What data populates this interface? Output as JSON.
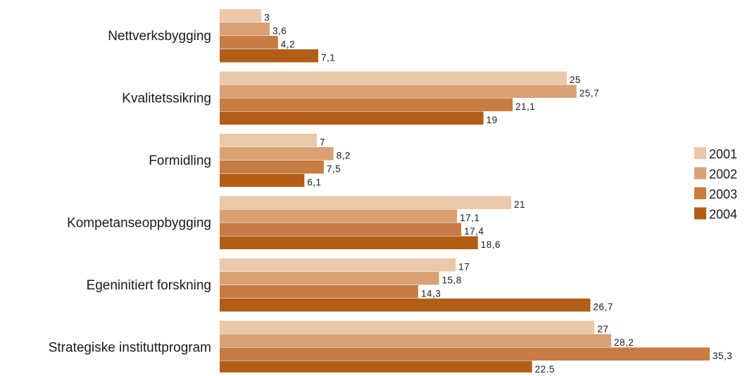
{
  "chart_data": {
    "type": "bar",
    "orientation": "horizontal",
    "categories": [
      "Nettverksbygging",
      "Kvalitetssikring",
      "Formidling",
      "Kompetanseoppbygging",
      "Egeninitiert forskning",
      "Strategiske instituttprogram"
    ],
    "series": [
      {
        "name": "2001",
        "color": "#EBC8A9",
        "values": [
          3,
          25,
          7,
          21,
          17,
          27
        ],
        "labels": [
          "3",
          "25",
          "7",
          "21",
          "17",
          "27"
        ]
      },
      {
        "name": "2002",
        "color": "#D9A074",
        "values": [
          3.6,
          25.7,
          8.2,
          17.1,
          15.8,
          28.2
        ],
        "labels": [
          "3,6",
          "25,7",
          "8,2",
          "17,1",
          "15,8",
          "28,2"
        ]
      },
      {
        "name": "2003",
        "color": "#C67C42",
        "values": [
          4.2,
          21.1,
          7.5,
          17.4,
          14.3,
          35.3
        ],
        "labels": [
          "4,2",
          "21,1",
          "7,5",
          "17,4",
          "14,3",
          "35,3"
        ]
      },
      {
        "name": "2004",
        "color": "#B25E17",
        "values": [
          7.1,
          19,
          6.1,
          18.6,
          26.7,
          22.5
        ],
        "labels": [
          "7,1",
          "19",
          "6,1",
          "18,6",
          "26,7",
          "22,5"
        ]
      }
    ],
    "xlim": [
      0,
      35.3
    ],
    "grid": false,
    "legend_position": "right"
  }
}
